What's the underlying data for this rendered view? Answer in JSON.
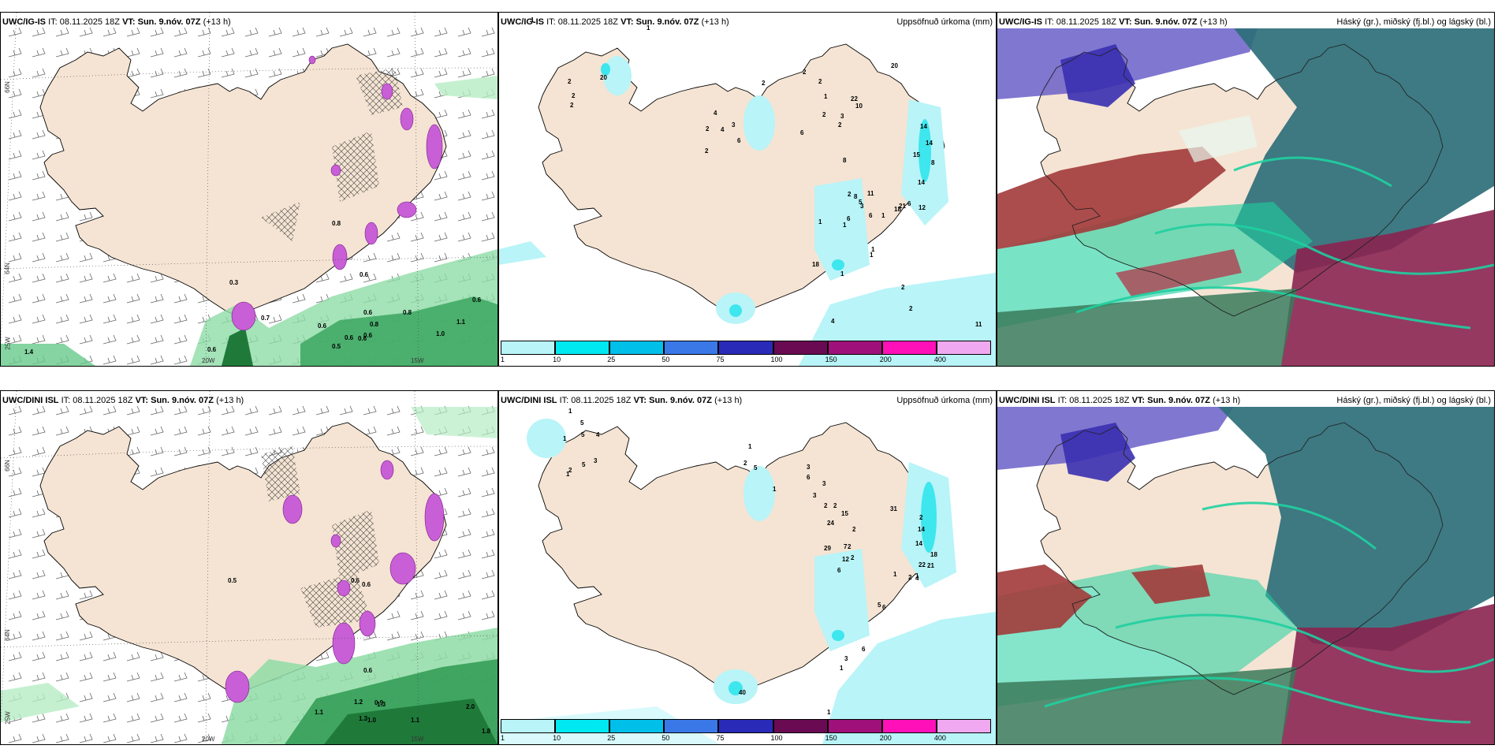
{
  "colors": {
    "land": "#f5e4d3",
    "precip_light": "#b8f4f8",
    "precip_mid": "#3ee6ee",
    "rain_green": "#67c98a",
    "rain_dark": "#1f7a3a",
    "snow_purple": "#c85fd6",
    "cloud_high": "#6a5fc8",
    "cloud_mid": "#2e8a8a",
    "cloud_low": "#a23a3a",
    "cloud_teal": "#1fd0a0"
  },
  "panels": {
    "top_left": {
      "model": "UWC/IG-IS",
      "it_label": "IT:",
      "it_value": "08.11.2025 18Z",
      "vt_label": "VT:",
      "vt_value": "Sun. 9.nóv. 07Z",
      "lead": "(+13 h)"
    },
    "top_mid": {
      "model": "UWC/IG-IS",
      "it_label": "IT:",
      "it_value": "08.11.2025 18Z",
      "vt_label": "VT:",
      "vt_value": "Sun. 9.nóv. 07Z",
      "lead": "(+13 h)",
      "right_title": "Uppsöfnuð úrkoma (mm)"
    },
    "top_right": {
      "model": "UWC/IG-IS",
      "it_label": "IT:",
      "it_value": "08.11.2025 18Z",
      "vt_label": "VT:",
      "vt_value": "Sun. 9.nóv. 07Z",
      "lead": "(+13 h)",
      "right_title": "Háský (gr.), miðský (fj.bl.) og lágský (bl.)"
    },
    "bottom_left": {
      "model": "UWC/DINI ISL",
      "it_label": "IT:",
      "it_value": "08.11.2025 18Z",
      "vt_label": "VT:",
      "vt_value": "Sun. 9.nóv. 07Z",
      "lead": "(+13 h)"
    },
    "bottom_mid": {
      "model": "UWC/DINI ISL",
      "it_label": "IT:",
      "it_value": "08.11.2025 18Z",
      "vt_label": "VT:",
      "vt_value": "Sun. 9.nóv. 07Z",
      "lead": "(+13 h)",
      "right_title": "Uppsöfnuð úrkoma (mm)"
    },
    "bottom_right": {
      "model": "UWC/DINI ISL",
      "it_label": "IT:",
      "it_value": "08.11.2025 18Z",
      "vt_label": "VT:",
      "vt_value": "Sun. 9.nóv. 07Z",
      "lead": "(+13 h)",
      "right_title": "Háský (gr.), miðský (fj.bl.) og lágský (bl.)"
    }
  },
  "axis_labels": {
    "lat66": "66N",
    "lat64": "64N",
    "lat65": "65N",
    "lon20": "20W",
    "lon15": "15W",
    "lon25": "25W"
  },
  "colorbar": {
    "labels": [
      "1",
      "10",
      "25",
      "50",
      "75",
      "100",
      "150",
      "200",
      "400"
    ],
    "colors": [
      "#b8f4f8",
      "#00e8f0",
      "#00bfe8",
      "#3a78e8",
      "#2a2ab8",
      "#6a0a52",
      "#a0107a",
      "#ff10b8",
      "#f0a8f0"
    ]
  },
  "precip_values_top": [
    "1",
    "2",
    "2",
    "2",
    "20",
    "1",
    "2",
    "4",
    "4",
    "3",
    "2",
    "6",
    "2",
    "6",
    "2",
    "2",
    "1",
    "2",
    "2",
    "10",
    "20",
    "22",
    "3",
    "14",
    "14",
    "15",
    "8",
    "1",
    "8",
    "12",
    "14",
    "6",
    "5",
    "6",
    "1",
    "18",
    "21",
    "11",
    "4",
    "2",
    "1",
    "2",
    "1",
    "2",
    "1",
    "18",
    "3",
    "6",
    "8",
    "11",
    "1"
  ],
  "precip_values_bottom": [
    "1",
    "5",
    "5",
    "4",
    "1",
    "3",
    "5",
    "2",
    "1",
    "1",
    "2",
    "5",
    "3",
    "6",
    "3",
    "1",
    "3",
    "2",
    "2",
    "15",
    "31",
    "24",
    "29",
    "2",
    "2",
    "2",
    "7",
    "2",
    "14",
    "12",
    "6",
    "14",
    "22",
    "2",
    "1",
    "18",
    "21",
    "1",
    "4",
    "5",
    "6",
    "6",
    "3",
    "1",
    "40",
    "1"
  ],
  "rain_values_top": [
    "0.8",
    "0.6",
    "0.3",
    "0.6",
    "0.6",
    "0.8",
    "0.7",
    "0.8",
    "0.6",
    "0.6",
    "0.5",
    "0.6",
    "0.6",
    "0.6",
    "1.0",
    "1.1",
    "1.4"
  ],
  "rain_values_bottom": [
    "0.5",
    "0.6",
    "0.6",
    "0.9",
    "1.2",
    "1.3",
    "1.0",
    "0.6",
    "1.1",
    "2.0",
    "1.8",
    "1.3",
    "1.1"
  ]
}
